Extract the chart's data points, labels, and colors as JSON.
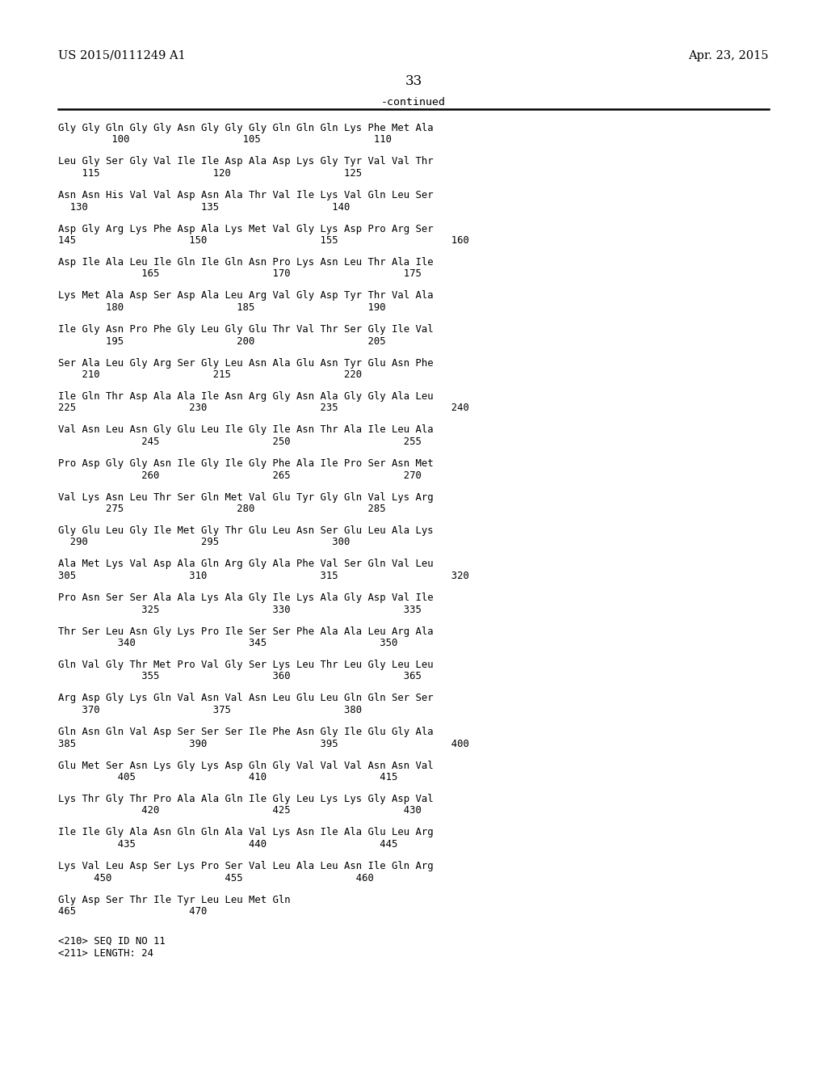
{
  "header_left": "US 2015/0111249 A1",
  "header_right": "Apr. 23, 2015",
  "page_number": "33",
  "continued_text": "-continued",
  "background_color": "#ffffff",
  "text_color": "#000000",
  "sequence_blocks": [
    [
      "Gly Gly Gln Gly Gly Asn Gly Gly Gly Gln Gln Gln Lys Phe Met Ala",
      "         100                   105                   110"
    ],
    [
      "Leu Gly Ser Gly Val Ile Ile Asp Ala Asp Lys Gly Tyr Val Val Thr",
      "    115                   120                   125"
    ],
    [
      "Asn Asn His Val Val Asp Asn Ala Thr Val Ile Lys Val Gln Leu Ser",
      "  130                   135                   140"
    ],
    [
      "Asp Gly Arg Lys Phe Asp Ala Lys Met Val Gly Lys Asp Pro Arg Ser",
      "145                   150                   155                   160"
    ],
    [
      "Asp Ile Ala Leu Ile Gln Ile Gln Asn Pro Lys Asn Leu Thr Ala Ile",
      "              165                   170                   175"
    ],
    [
      "Lys Met Ala Asp Ser Asp Ala Leu Arg Val Gly Asp Tyr Thr Val Ala",
      "        180                   185                   190"
    ],
    [
      "Ile Gly Asn Pro Phe Gly Leu Gly Glu Thr Val Thr Ser Gly Ile Val",
      "        195                   200                   205"
    ],
    [
      "Ser Ala Leu Gly Arg Ser Gly Leu Asn Ala Glu Asn Tyr Glu Asn Phe",
      "    210                   215                   220"
    ],
    [
      "Ile Gln Thr Asp Ala Ala Ile Asn Arg Gly Asn Ala Gly Gly Ala Leu",
      "225                   230                   235                   240"
    ],
    [
      "Val Asn Leu Asn Gly Glu Leu Ile Gly Ile Asn Thr Ala Ile Leu Ala",
      "              245                   250                   255"
    ],
    [
      "Pro Asp Gly Gly Asn Ile Gly Ile Gly Phe Ala Ile Pro Ser Asn Met",
      "              260                   265                   270"
    ],
    [
      "Val Lys Asn Leu Thr Ser Gln Met Val Glu Tyr Gly Gln Val Lys Arg",
      "        275                   280                   285"
    ],
    [
      "Gly Glu Leu Gly Ile Met Gly Thr Glu Leu Asn Ser Glu Leu Ala Lys",
      "  290                   295                   300"
    ],
    [
      "Ala Met Lys Val Asp Ala Gln Arg Gly Ala Phe Val Ser Gln Val Leu",
      "305                   310                   315                   320"
    ],
    [
      "Pro Asn Ser Ser Ala Ala Lys Ala Gly Ile Lys Ala Gly Asp Val Ile",
      "              325                   330                   335"
    ],
    [
      "Thr Ser Leu Asn Gly Lys Pro Ile Ser Ser Phe Ala Ala Leu Arg Ala",
      "          340                   345                   350"
    ],
    [
      "Gln Val Gly Thr Met Pro Val Gly Ser Lys Leu Thr Leu Gly Leu Leu",
      "              355                   360                   365"
    ],
    [
      "Arg Asp Gly Lys Gln Val Asn Val Asn Leu Glu Leu Gln Gln Ser Ser",
      "    370                   375                   380"
    ],
    [
      "Gln Asn Gln Val Asp Ser Ser Ser Ile Phe Asn Gly Ile Glu Gly Ala",
      "385                   390                   395                   400"
    ],
    [
      "Glu Met Ser Asn Lys Gly Lys Asp Gln Gly Val Val Val Asn Asn Val",
      "          405                   410                   415"
    ],
    [
      "Lys Thr Gly Thr Pro Ala Ala Gln Ile Gly Leu Lys Lys Gly Asp Val",
      "              420                   425                   430"
    ],
    [
      "Ile Ile Gly Ala Asn Gln Gln Ala Val Lys Asn Ile Ala Glu Leu Arg",
      "          435                   440                   445"
    ],
    [
      "Lys Val Leu Asp Ser Lys Pro Ser Val Leu Ala Leu Asn Ile Gln Arg",
      "      450                   455                   460"
    ],
    [
      "Gly Asp Ser Thr Ile Tyr Leu Leu Met Gln",
      "465                   470"
    ]
  ],
  "metadata_lines": [
    "<210> SEQ ID NO 11",
    "<211> LENGTH: 24"
  ]
}
